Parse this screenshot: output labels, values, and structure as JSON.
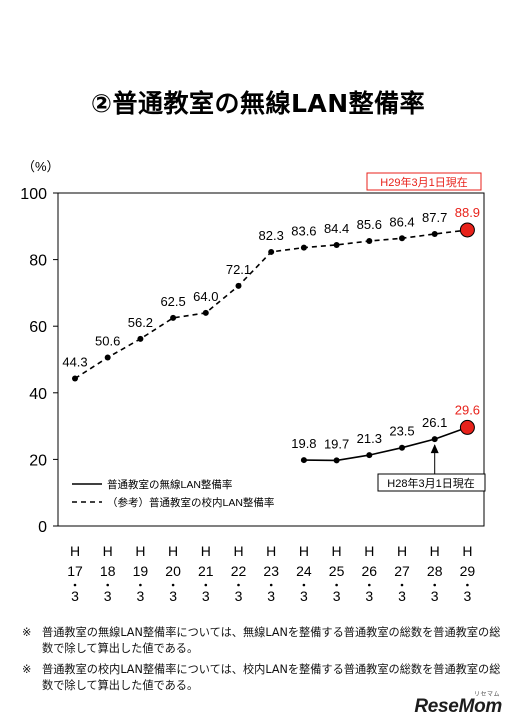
{
  "title": "②普通教室の無線LAN整備率",
  "chart_data": {
    "type": "line",
    "ylabel": "（%）",
    "ylim": [
      0,
      100
    ],
    "yticks": [
      0,
      20,
      40,
      60,
      80,
      100
    ],
    "categories": [
      [
        "H",
        "17",
        "3"
      ],
      [
        "H",
        "18",
        "3"
      ],
      [
        "H",
        "19",
        "3"
      ],
      [
        "H",
        "20",
        "3"
      ],
      [
        "H",
        "21",
        "3"
      ],
      [
        "H",
        "22",
        "3"
      ],
      [
        "H",
        "23",
        "3"
      ],
      [
        "H",
        "24",
        "3"
      ],
      [
        "H",
        "25",
        "3"
      ],
      [
        "H",
        "26",
        "3"
      ],
      [
        "H",
        "27",
        "3"
      ],
      [
        "H",
        "28",
        "3"
      ],
      [
        "H",
        "29",
        "3"
      ]
    ],
    "series": [
      {
        "name": "普通教室の無線LAN整備率",
        "style": "solid",
        "values": [
          null,
          null,
          null,
          null,
          null,
          null,
          null,
          19.8,
          19.7,
          21.3,
          23.5,
          26.1,
          29.6
        ],
        "labels": [
          "",
          "",
          "",
          "",
          "",
          "",
          "",
          "19.8",
          "19.7",
          "21.3",
          "23.5",
          "26.1",
          "29.6"
        ]
      },
      {
        "name": "（参考）普通教室の校内LAN整備率",
        "style": "dashed",
        "values": [
          44.3,
          50.6,
          56.2,
          62.5,
          64.0,
          72.1,
          82.3,
          83.6,
          84.4,
          85.6,
          86.4,
          87.7,
          88.9
        ],
        "labels": [
          "44.3",
          "50.6",
          "56.2",
          "62.5",
          "64.0",
          "72.1",
          "82.3",
          "83.6",
          "84.4",
          "85.6",
          "86.4",
          "87.7",
          "88.9"
        ]
      }
    ],
    "highlight_color": "#e8221b",
    "annotations": [
      {
        "text": "H29年3月1日現在",
        "color": "#e8221b",
        "target": "top-right"
      },
      {
        "text": "H28年3月1日現在",
        "color": "#000000",
        "target_series": 0,
        "target_index": 11
      }
    ],
    "legend_placement": "inside-bottom-left",
    "grid": false
  },
  "notes": [
    {
      "mark": "※",
      "text": "普通教室の無線LAN整備率については、無線LANを整備する普通教室の総数を普通教室の総数で除して算出した値である。"
    },
    {
      "mark": "※",
      "text": "普通教室の校内LAN整備率については、校内LANを整備する普通教室の総数を普通教室の総数で除して算出した値である。"
    }
  ],
  "logo": {
    "text": "ReseMom",
    "kana": "リセマム"
  }
}
